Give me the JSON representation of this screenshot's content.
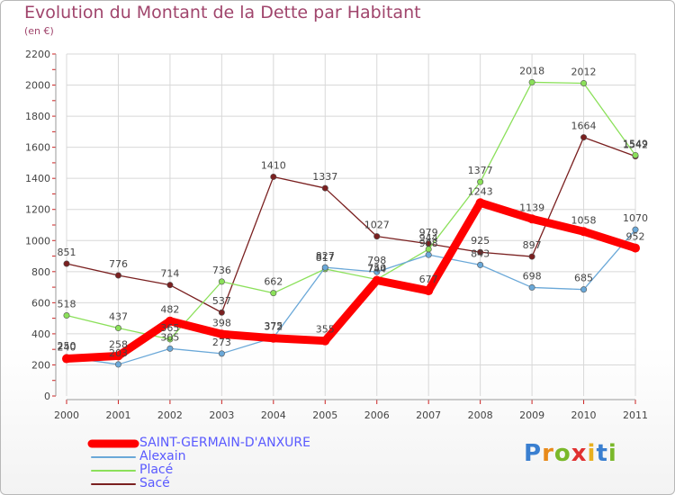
{
  "chart_data": {
    "type": "line",
    "title": "Evolution du Montant de la Dette par Habitant",
    "subtitle": "(en €)",
    "xlabel": "",
    "ylabel": "",
    "x": [
      "2000",
      "2001",
      "2002",
      "2003",
      "2004",
      "2005",
      "2006",
      "2007",
      "2008",
      "2009",
      "2010",
      "2011"
    ],
    "ylim": [
      0,
      2200
    ],
    "yticks": [
      "0",
      "200",
      "400",
      "600",
      "800",
      "1000",
      "1200",
      "1400",
      "1600",
      "1800",
      "2000",
      "2200"
    ],
    "grid": true,
    "legend_position": "bottom-left",
    "series": [
      {
        "name": "SAINT-GERMAIN-D'ANXURE",
        "color": "#ff0000",
        "values": [
          240,
          258,
          482,
          398,
          372,
          355,
          744,
          677,
          1243,
          1139,
          1058,
          952
        ]
      },
      {
        "name": "Alexain",
        "color": "#6aa8d8",
        "values": [
          250,
          203,
          305,
          273,
          375,
          827,
          798,
          908,
          843,
          698,
          685,
          1070
        ]
      },
      {
        "name": "Placé",
        "color": "#8be05a",
        "values": [
          518,
          437,
          365,
          736,
          662,
          817,
          750,
          944,
          1377,
          2018,
          2012,
          1549
        ]
      },
      {
        "name": "Sacé",
        "color": "#7a2020",
        "values": [
          851,
          776,
          714,
          537,
          1410,
          1337,
          1027,
          979,
          925,
          897,
          1664,
          1542
        ]
      }
    ]
  },
  "logo": {
    "letters": [
      "P",
      "r",
      "o",
      "x",
      "i",
      "t",
      "i"
    ],
    "colors": [
      "#3a7fd0",
      "#e88a1a",
      "#7ab82a",
      "#e03030",
      "#e8b020",
      "#3a7fd0",
      "#7ab82a"
    ]
  }
}
